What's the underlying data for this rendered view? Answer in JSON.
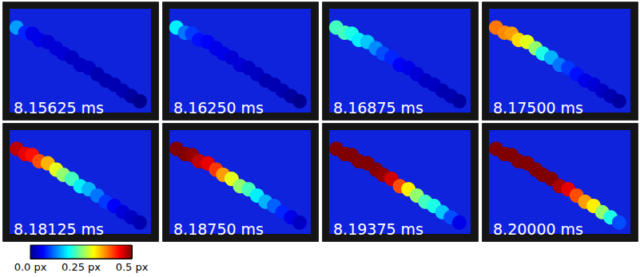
{
  "chart_data": [
    {
      "type": "scatter",
      "title": "8.15625 ms",
      "marker": "circle",
      "tick_labels": false,
      "xlim": [
        0,
        100
      ],
      "ylim": [
        0,
        100
      ],
      "x": [
        5,
        11,
        16,
        21,
        27,
        33,
        38,
        44,
        50,
        56,
        62,
        68,
        74,
        80,
        86,
        92
      ],
      "y": [
        18,
        23,
        24,
        30,
        32,
        38,
        43,
        47,
        54,
        57,
        63,
        69,
        73,
        79,
        84,
        89
      ],
      "values": [
        0.14,
        0.08,
        0.05,
        0.05,
        0.04,
        0.04,
        0.04,
        0.03,
        0.03,
        0.03,
        0.02,
        0.02,
        0.02,
        0.02,
        0.01,
        0.0
      ]
    },
    {
      "type": "scatter",
      "title": "8.16250 ms",
      "marker": "circle",
      "tick_labels": false,
      "xlim": [
        0,
        100
      ],
      "ylim": [
        0,
        100
      ],
      "x": [
        5,
        11,
        16,
        21,
        27,
        33,
        38,
        44,
        50,
        56,
        62,
        68,
        74,
        80,
        86,
        92
      ],
      "y": [
        18,
        23,
        24,
        30,
        32,
        38,
        43,
        47,
        54,
        57,
        63,
        69,
        73,
        79,
        84,
        89
      ],
      "values": [
        0.18,
        0.12,
        0.09,
        0.07,
        0.06,
        0.05,
        0.05,
        0.04,
        0.04,
        0.03,
        0.03,
        0.02,
        0.02,
        0.02,
        0.01,
        0.0
      ]
    },
    {
      "type": "scatter",
      "title": "8.16875 ms",
      "marker": "circle",
      "tick_labels": false,
      "xlim": [
        0,
        100
      ],
      "ylim": [
        0,
        100
      ],
      "x": [
        5,
        11,
        16,
        21,
        27,
        33,
        38,
        44,
        50,
        56,
        62,
        68,
        74,
        80,
        86,
        92
      ],
      "y": [
        18,
        23,
        24,
        30,
        32,
        38,
        43,
        47,
        54,
        57,
        63,
        69,
        73,
        79,
        84,
        89
      ],
      "values": [
        0.22,
        0.22,
        0.2,
        0.18,
        0.16,
        0.13,
        0.1,
        0.08,
        0.06,
        0.05,
        0.04,
        0.03,
        0.03,
        0.02,
        0.02,
        0.01
      ]
    },
    {
      "type": "scatter",
      "title": "8.17500 ms",
      "marker": "circle",
      "tick_labels": false,
      "xlim": [
        0,
        100
      ],
      "ylim": [
        0,
        100
      ],
      "x": [
        5,
        11,
        16,
        21,
        27,
        33,
        38,
        44,
        50,
        56,
        62,
        68,
        74,
        80,
        86,
        92
      ],
      "y": [
        18,
        23,
        24,
        30,
        32,
        38,
        43,
        47,
        54,
        57,
        63,
        69,
        73,
        79,
        84,
        89
      ],
      "values": [
        0.38,
        0.37,
        0.36,
        0.33,
        0.3,
        0.26,
        0.2,
        0.15,
        0.12,
        0.09,
        0.07,
        0.05,
        0.04,
        0.03,
        0.02,
        0.01
      ]
    },
    {
      "type": "scatter",
      "title": "8.18125 ms",
      "marker": "circle",
      "tick_labels": false,
      "xlim": [
        0,
        100
      ],
      "ylim": [
        0,
        100
      ],
      "x": [
        5,
        11,
        16,
        21,
        27,
        33,
        38,
        44,
        50,
        56,
        62,
        68,
        74,
        80,
        86,
        92
      ],
      "y": [
        18,
        23,
        24,
        30,
        32,
        38,
        43,
        47,
        54,
        57,
        63,
        69,
        73,
        79,
        84,
        89
      ],
      "values": [
        0.47,
        0.45,
        0.43,
        0.4,
        0.35,
        0.3,
        0.26,
        0.22,
        0.18,
        0.15,
        0.12,
        0.09,
        0.06,
        0.04,
        0.03,
        0.02
      ]
    },
    {
      "type": "scatter",
      "title": "8.18750 ms",
      "marker": "circle",
      "tick_labels": false,
      "xlim": [
        0,
        100
      ],
      "ylim": [
        0,
        100
      ],
      "x": [
        5,
        11,
        16,
        21,
        27,
        33,
        38,
        44,
        50,
        56,
        62,
        68,
        74,
        80,
        86,
        92
      ],
      "y": [
        18,
        23,
        24,
        30,
        32,
        38,
        43,
        47,
        54,
        57,
        63,
        69,
        73,
        79,
        84,
        89
      ],
      "values": [
        0.5,
        0.5,
        0.49,
        0.47,
        0.45,
        0.41,
        0.36,
        0.3,
        0.26,
        0.22,
        0.18,
        0.15,
        0.11,
        0.08,
        0.05,
        0.03
      ]
    },
    {
      "type": "scatter",
      "title": "8.19375 ms",
      "marker": "circle",
      "tick_labels": false,
      "xlim": [
        0,
        100
      ],
      "ylim": [
        0,
        100
      ],
      "x": [
        5,
        11,
        16,
        21,
        27,
        33,
        38,
        44,
        50,
        56,
        62,
        68,
        74,
        80,
        86,
        92
      ],
      "y": [
        18,
        23,
        24,
        30,
        32,
        38,
        43,
        47,
        54,
        57,
        63,
        69,
        73,
        79,
        84,
        89
      ],
      "values": [
        0.5,
        0.5,
        0.5,
        0.5,
        0.5,
        0.5,
        0.49,
        0.46,
        0.4,
        0.32,
        0.26,
        0.22,
        0.2,
        0.16,
        0.1,
        0.05
      ]
    },
    {
      "type": "scatter",
      "title": "8.20000 ms",
      "marker": "circle",
      "tick_labels": false,
      "xlim": [
        0,
        100
      ],
      "ylim": [
        0,
        100
      ],
      "x": [
        5,
        11,
        16,
        21,
        27,
        33,
        38,
        44,
        50,
        56,
        62,
        68,
        74,
        80,
        86,
        92
      ],
      "y": [
        18,
        23,
        24,
        30,
        32,
        38,
        43,
        47,
        54,
        57,
        63,
        69,
        73,
        79,
        84,
        89
      ],
      "values": [
        0.5,
        0.5,
        0.5,
        0.5,
        0.5,
        0.5,
        0.5,
        0.5,
        0.48,
        0.45,
        0.4,
        0.36,
        0.32,
        0.26,
        0.2,
        0.1
      ]
    }
  ],
  "colorbar": {
    "range": [
      0,
      0.5
    ],
    "ticks": [
      {
        "value": 0,
        "label": "0.0 px"
      },
      {
        "value": 0.25,
        "label": "0.25 px"
      },
      {
        "value": 0.5,
        "label": "0.5 px"
      }
    ]
  }
}
